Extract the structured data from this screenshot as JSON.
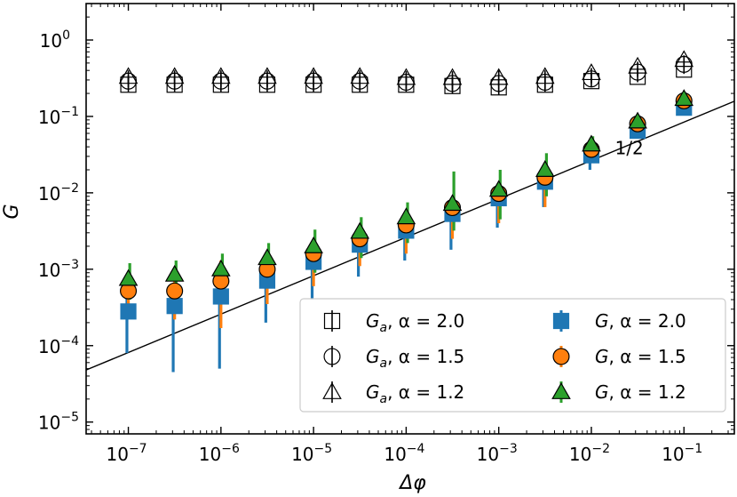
{
  "chart_data": {
    "type": "scatter",
    "title": "",
    "xlabel": "Δφ",
    "ylabel": "G",
    "xscale": "log",
    "yscale": "log",
    "xlim": [
      3.5e-08,
      0.35
    ],
    "ylim": [
      7e-06,
      3
    ],
    "x_ticks": [
      {
        "value": 1e-07,
        "base": "10",
        "exp": "−7"
      },
      {
        "value": 1e-06,
        "base": "10",
        "exp": "−6"
      },
      {
        "value": 1e-05,
        "base": "10",
        "exp": "−5"
      },
      {
        "value": 0.0001,
        "base": "10",
        "exp": "−4"
      },
      {
        "value": 0.001,
        "base": "10",
        "exp": "−3"
      },
      {
        "value": 0.01,
        "base": "10",
        "exp": "−2"
      },
      {
        "value": 0.1,
        "base": "10",
        "exp": "−1"
      }
    ],
    "y_ticks": [
      {
        "value": 1e-05,
        "base": "10",
        "exp": "−5"
      },
      {
        "value": 0.0001,
        "base": "10",
        "exp": "−4"
      },
      {
        "value": 0.001,
        "base": "10",
        "exp": "−3"
      },
      {
        "value": 0.01,
        "base": "10",
        "exp": "−2"
      },
      {
        "value": 0.1,
        "base": "10",
        "exp": "−1"
      },
      {
        "value": 1,
        "base": "10",
        "exp": "0"
      }
    ],
    "x": [
      1e-07,
      3.16e-07,
      1e-06,
      3.16e-06,
      1e-05,
      3.16e-05,
      0.0001,
      0.000316,
      0.001,
      0.00316,
      0.01,
      0.0316,
      0.1
    ],
    "series": [
      {
        "name": "G_a, α = 2.0",
        "marker": "square",
        "filled": false,
        "color": "#000000",
        "values": [
          0.26,
          0.26,
          0.26,
          0.26,
          0.26,
          0.26,
          0.26,
          0.25,
          0.24,
          0.26,
          0.29,
          0.33,
          0.41
        ],
        "err_low": [
          0.21,
          0.21,
          0.21,
          0.21,
          0.21,
          0.21,
          0.21,
          0.2,
          0.19,
          0.21,
          0.24,
          0.28,
          0.36
        ],
        "err_high": [
          0.32,
          0.32,
          0.32,
          0.32,
          0.32,
          0.32,
          0.32,
          0.32,
          0.31,
          0.32,
          0.35,
          0.4,
          0.49
        ]
      },
      {
        "name": "G_a, α = 1.5",
        "marker": "circle",
        "filled": false,
        "color": "#000000",
        "values": [
          0.29,
          0.29,
          0.29,
          0.29,
          0.29,
          0.29,
          0.28,
          0.27,
          0.27,
          0.28,
          0.31,
          0.38,
          0.48
        ],
        "err_low": [
          0.24,
          0.24,
          0.24,
          0.24,
          0.24,
          0.24,
          0.23,
          0.22,
          0.21,
          0.23,
          0.27,
          0.33,
          0.42
        ],
        "err_high": [
          0.35,
          0.35,
          0.35,
          0.35,
          0.35,
          0.35,
          0.34,
          0.33,
          0.34,
          0.35,
          0.37,
          0.43,
          0.55
        ]
      },
      {
        "name": "G_a, α = 1.2",
        "marker": "triangle",
        "filled": false,
        "color": "#000000",
        "values": [
          0.33,
          0.33,
          0.33,
          0.33,
          0.33,
          0.33,
          0.32,
          0.32,
          0.32,
          0.33,
          0.37,
          0.45,
          0.55
        ],
        "err_low": [
          0.27,
          0.27,
          0.27,
          0.27,
          0.27,
          0.27,
          0.26,
          0.25,
          0.25,
          0.27,
          0.31,
          0.39,
          0.48
        ],
        "err_high": [
          0.4,
          0.4,
          0.4,
          0.4,
          0.4,
          0.4,
          0.39,
          0.39,
          0.4,
          0.4,
          0.43,
          0.52,
          0.63
        ]
      },
      {
        "name": "G, α = 2.0",
        "marker": "square",
        "filled": true,
        "color": "#1f77b4",
        "values": [
          0.00028,
          0.00033,
          0.00044,
          0.00071,
          0.00125,
          0.0021,
          0.0032,
          0.0053,
          0.0085,
          0.014,
          0.031,
          0.065,
          0.13
        ],
        "err_low": [
          8e-05,
          4.5e-05,
          5e-05,
          0.0002,
          0.0004,
          0.0008,
          0.0013,
          0.0018,
          0.0035,
          0.0065,
          0.02,
          0.055,
          0.11
        ],
        "err_high": [
          0.0005,
          0.0005,
          0.0006,
          0.0009,
          0.0015,
          0.0025,
          0.004,
          0.006,
          0.01,
          0.016,
          0.036,
          0.072,
          0.15
        ]
      },
      {
        "name": "G, α = 1.5",
        "marker": "circle",
        "filled": true,
        "color": "#ff7f0e",
        "values": [
          0.00052,
          0.00052,
          0.0007,
          0.001,
          0.0016,
          0.0025,
          0.0038,
          0.0064,
          0.0098,
          0.016,
          0.037,
          0.08,
          0.16
        ],
        "err_low": [
          0.0003,
          0.00022,
          0.00017,
          0.00035,
          0.0006,
          0.0011,
          0.0016,
          0.0025,
          0.004,
          0.0065,
          0.025,
          0.07,
          0.14
        ],
        "err_high": [
          0.00085,
          0.0009,
          0.0013,
          0.0017,
          0.0025,
          0.0037,
          0.0055,
          0.0085,
          0.013,
          0.022,
          0.045,
          0.09,
          0.18
        ]
      },
      {
        "name": "G, α = 1.2",
        "marker": "triangle",
        "filled": true,
        "color": "#2ca02c",
        "values": [
          0.00075,
          0.00085,
          0.001,
          0.0014,
          0.002,
          0.0031,
          0.0048,
          0.0072,
          0.011,
          0.02,
          0.043,
          0.086,
          0.17
        ],
        "err_low": [
          0.0004,
          0.0003,
          0.0004,
          0.0006,
          0.0009,
          0.0014,
          0.0022,
          0.0032,
          0.0045,
          0.009,
          0.03,
          0.07,
          0.15
        ],
        "err_high": [
          0.0012,
          0.0013,
          0.0016,
          0.0022,
          0.0033,
          0.0048,
          0.0075,
          0.019,
          0.02,
          0.033,
          0.055,
          0.1,
          0.2
        ]
      }
    ],
    "reference_line": {
      "slope": 0.5,
      "x": [
        3.5e-08,
        0.35
      ],
      "y": [
        4.8e-05,
        0.158
      ]
    },
    "annotations": [
      {
        "text": "1/2",
        "x": 0.018,
        "y": 0.032
      }
    ],
    "legend": {
      "placement": "lower-right",
      "ncol": 2,
      "entries": [
        {
          "series": 0,
          "main": "G",
          "sub": "a",
          "rest": ", α = 2.0"
        },
        {
          "series": 1,
          "main": "G",
          "sub": "a",
          "rest": ", α = 1.5"
        },
        {
          "series": 2,
          "main": "G",
          "sub": "a",
          "rest": ", α = 1.2"
        },
        {
          "series": 3,
          "main": "G",
          "sub": "",
          "rest": ", α = 2.0"
        },
        {
          "series": 4,
          "main": "G",
          "sub": "",
          "rest": ", α = 1.5"
        },
        {
          "series": 5,
          "main": "G",
          "sub": "",
          "rest": ", α = 1.2"
        }
      ]
    }
  }
}
